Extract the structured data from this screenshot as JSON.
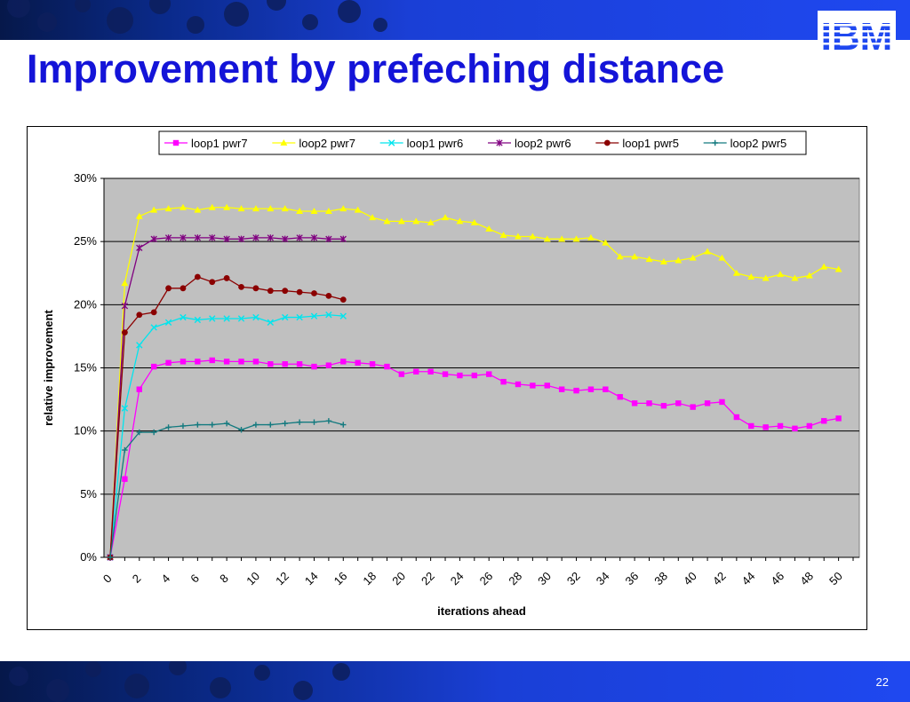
{
  "slide": {
    "title": "Improvement by prefeching distance",
    "logo_text": "IBM",
    "page_number": "22"
  },
  "colors": {
    "title": "#1414d8",
    "banner": "#1f48f0",
    "plot_bg": "#c0c0c0"
  },
  "chart_data": {
    "type": "line",
    "xlabel": "iterations ahead",
    "ylabel": "relative improvement",
    "x_ticks": [
      "0",
      "2",
      "4",
      "6",
      "8",
      "10",
      "12",
      "14",
      "16",
      "18",
      "20",
      "22",
      "24",
      "26",
      "28",
      "30",
      "32",
      "34",
      "36",
      "38",
      "40",
      "42",
      "44",
      "46",
      "48",
      "50"
    ],
    "y_ticks": [
      "0%",
      "5%",
      "10%",
      "15%",
      "20%",
      "25%",
      "30%"
    ],
    "xlim": [
      0,
      51
    ],
    "ylim": [
      0,
      30
    ],
    "legend_position": "top",
    "grid": "horizontal",
    "series": [
      {
        "name": "loop1 pwr7",
        "color": "#ff00ff",
        "marker": "square",
        "values": [
          0,
          6.2,
          13.3,
          15.1,
          15.4,
          15.5,
          15.5,
          15.6,
          15.5,
          15.5,
          15.5,
          15.3,
          15.3,
          15.3,
          15.1,
          15.2,
          15.5,
          15.4,
          15.3,
          15.1,
          14.5,
          14.7,
          14.7,
          14.5,
          14.4,
          14.4,
          14.5,
          13.9,
          13.7,
          13.6,
          13.6,
          13.3,
          13.2,
          13.3,
          13.3,
          12.7,
          12.2,
          12.2,
          12.0,
          12.2,
          11.9,
          12.2,
          12.3,
          11.1,
          10.4,
          10.3,
          10.4,
          10.2,
          10.4,
          10.8,
          11.0
        ]
      },
      {
        "name": "loop2 pwr7",
        "color": "#ffff00",
        "marker": "triangle",
        "values": [
          0,
          21.7,
          27.0,
          27.5,
          27.6,
          27.7,
          27.5,
          27.7,
          27.7,
          27.6,
          27.6,
          27.6,
          27.6,
          27.4,
          27.4,
          27.4,
          27.6,
          27.5,
          26.9,
          26.6,
          26.6,
          26.6,
          26.5,
          26.9,
          26.6,
          26.5,
          26.0,
          25.5,
          25.4,
          25.4,
          25.2,
          25.2,
          25.2,
          25.3,
          24.9,
          23.8,
          23.8,
          23.6,
          23.4,
          23.5,
          23.7,
          24.2,
          23.7,
          22.5,
          22.2,
          22.1,
          22.4,
          22.1,
          22.3,
          23.0,
          22.8
        ]
      },
      {
        "name": "loop1 pwr6",
        "color": "#00e5ee",
        "marker": "x",
        "values": [
          0,
          11.8,
          16.8,
          18.2,
          18.6,
          19.0,
          18.8,
          18.9,
          18.9,
          18.9,
          19.0,
          18.6,
          19.0,
          19.0,
          19.1,
          19.2,
          19.1
        ]
      },
      {
        "name": "loop2 pwr6",
        "color": "#800080",
        "marker": "star",
        "values": [
          0,
          19.9,
          24.5,
          25.2,
          25.3,
          25.3,
          25.3,
          25.3,
          25.2,
          25.2,
          25.3,
          25.3,
          25.2,
          25.3,
          25.3,
          25.2,
          25.2
        ]
      },
      {
        "name": "loop1 pwr5",
        "color": "#8b0000",
        "marker": "circle",
        "values": [
          0,
          17.8,
          19.2,
          19.4,
          21.3,
          21.3,
          22.2,
          21.8,
          22.1,
          21.4,
          21.3,
          21.1,
          21.1,
          21.0,
          20.9,
          20.7,
          20.4
        ]
      },
      {
        "name": "loop2 pwr5",
        "color": "#137a7f",
        "marker": "plus",
        "values": [
          0,
          8.5,
          9.9,
          9.9,
          10.3,
          10.4,
          10.5,
          10.5,
          10.6,
          10.1,
          10.5,
          10.5,
          10.6,
          10.7,
          10.7,
          10.8,
          10.5
        ]
      }
    ]
  }
}
